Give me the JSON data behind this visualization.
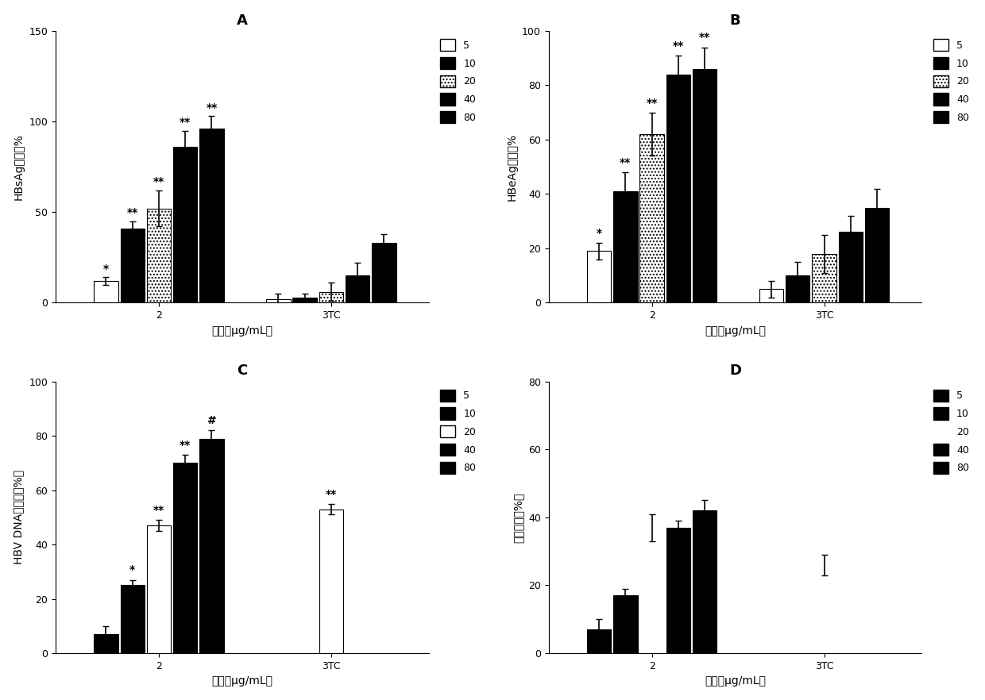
{
  "panel_A": {
    "title": "A",
    "ylabel": "HBsAg抑制率%",
    "xlabel": "浓度（μg/mL）",
    "ylim": [
      0,
      150
    ],
    "yticks": [
      0,
      50,
      100,
      150
    ],
    "bars_2": {
      "values": [
        12,
        41,
        52,
        86,
        96
      ],
      "errors": [
        2,
        4,
        10,
        9,
        7
      ],
      "annotations": [
        "*",
        "**",
        "**",
        "**",
        "**"
      ]
    },
    "bars_3TC": {
      "values": [
        2,
        3,
        6,
        15,
        33
      ],
      "errors": [
        3,
        2,
        5,
        7,
        5
      ],
      "annotations": [
        "",
        "",
        "",
        "",
        ""
      ]
    }
  },
  "panel_B": {
    "title": "B",
    "ylabel": "HBeAg抑制率%",
    "xlabel": "浓度（μg/mL）",
    "ylim": [
      0,
      100
    ],
    "yticks": [
      0,
      20,
      40,
      60,
      80,
      100
    ],
    "bars_2": {
      "values": [
        19,
        41,
        62,
        84,
        86
      ],
      "errors": [
        3,
        7,
        8,
        7,
        8
      ],
      "annotations": [
        "*",
        "**",
        "**",
        "**",
        "**"
      ]
    },
    "bars_3TC": {
      "values": [
        5,
        10,
        18,
        26,
        35
      ],
      "errors": [
        3,
        5,
        7,
        6,
        7
      ],
      "annotations": [
        "",
        "",
        "",
        "",
        ""
      ]
    }
  },
  "panel_C": {
    "title": "C",
    "ylabel": "HBV DNA抑制率（%）",
    "xlabel": "浓度（μg/mL）",
    "ylim": [
      0,
      100
    ],
    "yticks": [
      0,
      20,
      40,
      60,
      80,
      100
    ],
    "bars_2": {
      "values": [
        7,
        25,
        47,
        70,
        79
      ],
      "errors": [
        3,
        2,
        2,
        3,
        3
      ],
      "colors": [
        "black",
        "black",
        "white",
        "black",
        "black"
      ],
      "annotations": [
        "",
        "*",
        "**",
        "**",
        "#"
      ]
    },
    "bars_3TC": {
      "values": [
        53
      ],
      "errors": [
        2
      ],
      "colors": [
        "white"
      ],
      "annotations": [
        "**"
      ]
    }
  },
  "panel_D": {
    "title": "D",
    "ylabel": "细胞毒性（%）",
    "xlabel": "浓度（μg/mL）",
    "ylim": [
      0,
      80
    ],
    "yticks": [
      0,
      20,
      40,
      60,
      80
    ],
    "bars_2": {
      "values": [
        7,
        17,
        0,
        37,
        42
      ],
      "errors": [
        3,
        2,
        4,
        2,
        3
      ],
      "has_bar": [
        true,
        true,
        false,
        true,
        true
      ],
      "annotations": [
        "",
        "",
        "",
        "",
        ""
      ]
    },
    "bars_3TC": {
      "values": [
        0
      ],
      "errors": [
        3
      ],
      "has_bar": [
        false
      ],
      "error_val": 26,
      "annotations": [
        ""
      ]
    }
  },
  "legend_labels": [
    "5",
    "10",
    "20",
    "40",
    "80"
  ],
  "background_color": "#ffffff",
  "text_color": "#000000",
  "fontsize_title": 13,
  "fontsize_label": 10,
  "fontsize_tick": 9,
  "fontsize_annot": 10
}
